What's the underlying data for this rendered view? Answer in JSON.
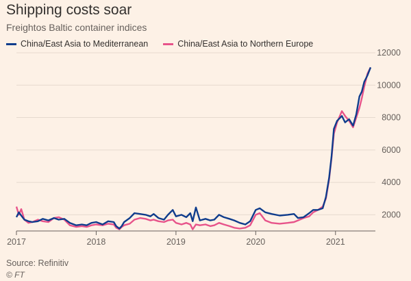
{
  "header": {
    "title": "Shipping costs soar",
    "subtitle": "Freightos Baltic container indices"
  },
  "legend": {
    "items": [
      {
        "label": "China/East Asia to Mediterranean",
        "color": "#0f3c8c"
      },
      {
        "label": "China/East Asia to Northern Europe",
        "color": "#e7538a"
      }
    ]
  },
  "footer": {
    "source": "Source: Refinitiv",
    "copyright": "© FT"
  },
  "chart_data": {
    "type": "line",
    "title": "Shipping costs soar",
    "subtitle": "Freightos Baltic container indices",
    "xlabel": "",
    "ylabel": "",
    "xlim": [
      2017.0,
      2021.5
    ],
    "ylim": [
      1000,
      12000
    ],
    "x_ticks": [
      2017,
      2018,
      2019,
      2020,
      2021
    ],
    "y_ticks": [
      2000,
      4000,
      6000,
      8000,
      10000,
      12000
    ],
    "y_tick_labels": [
      "2000",
      "4000",
      "6000",
      "8000",
      "10000",
      "12000"
    ],
    "y_axis_side": "right",
    "grid": "horizontal",
    "legend_position": "top-left",
    "series": [
      {
        "name": "China/East Asia to Mediterranean",
        "color": "#0f3c8c",
        "points": [
          [
            2017.0,
            1850
          ],
          [
            2017.03,
            2150
          ],
          [
            2017.06,
            1950
          ],
          [
            2017.1,
            1700
          ],
          [
            2017.15,
            1600
          ],
          [
            2017.2,
            1550
          ],
          [
            2017.27,
            1600
          ],
          [
            2017.33,
            1750
          ],
          [
            2017.4,
            1650
          ],
          [
            2017.47,
            1800
          ],
          [
            2017.53,
            1700
          ],
          [
            2017.6,
            1750
          ],
          [
            2017.67,
            1500
          ],
          [
            2017.75,
            1350
          ],
          [
            2017.82,
            1400
          ],
          [
            2017.88,
            1350
          ],
          [
            2017.94,
            1500
          ],
          [
            2018.0,
            1550
          ],
          [
            2018.08,
            1400
          ],
          [
            2018.15,
            1600
          ],
          [
            2018.22,
            1550
          ],
          [
            2018.25,
            1300
          ],
          [
            2018.29,
            1150
          ],
          [
            2018.32,
            1300
          ],
          [
            2018.35,
            1550
          ],
          [
            2018.42,
            1800
          ],
          [
            2018.48,
            2100
          ],
          [
            2018.55,
            2050
          ],
          [
            2018.62,
            2000
          ],
          [
            2018.68,
            1900
          ],
          [
            2018.72,
            2050
          ],
          [
            2018.78,
            1800
          ],
          [
            2018.85,
            1700
          ],
          [
            2018.9,
            2000
          ],
          [
            2018.96,
            2300
          ],
          [
            2019.0,
            1900
          ],
          [
            2019.07,
            2000
          ],
          [
            2019.13,
            1850
          ],
          [
            2019.18,
            2100
          ],
          [
            2019.21,
            1600
          ],
          [
            2019.25,
            2450
          ],
          [
            2019.3,
            1650
          ],
          [
            2019.37,
            1750
          ],
          [
            2019.43,
            1650
          ],
          [
            2019.48,
            1700
          ],
          [
            2019.54,
            2000
          ],
          [
            2019.6,
            1850
          ],
          [
            2019.67,
            1750
          ],
          [
            2019.73,
            1650
          ],
          [
            2019.8,
            1500
          ],
          [
            2019.87,
            1400
          ],
          [
            2019.93,
            1600
          ],
          [
            2020.0,
            2300
          ],
          [
            2020.05,
            2400
          ],
          [
            2020.12,
            2150
          ],
          [
            2020.2,
            2050
          ],
          [
            2020.3,
            1950
          ],
          [
            2020.4,
            2000
          ],
          [
            2020.48,
            2050
          ],
          [
            2020.53,
            1800
          ],
          [
            2020.6,
            1850
          ],
          [
            2020.67,
            2100
          ],
          [
            2020.72,
            2300
          ],
          [
            2020.78,
            2300
          ],
          [
            2020.84,
            2400
          ],
          [
            2020.88,
            3100
          ],
          [
            2020.92,
            4300
          ],
          [
            2020.95,
            5600
          ],
          [
            2020.98,
            7300
          ],
          [
            2021.02,
            7800
          ],
          [
            2021.08,
            8100
          ],
          [
            2021.12,
            7700
          ],
          [
            2021.17,
            7900
          ],
          [
            2021.22,
            7500
          ],
          [
            2021.26,
            8200
          ],
          [
            2021.3,
            9300
          ],
          [
            2021.33,
            9600
          ],
          [
            2021.36,
            10200
          ],
          [
            2021.4,
            10600
          ],
          [
            2021.44,
            11100
          ]
        ]
      },
      {
        "name": "China/East Asia to Northern Europe",
        "color": "#e7538a",
        "points": [
          [
            2017.0,
            2500
          ],
          [
            2017.03,
            2000
          ],
          [
            2017.06,
            2350
          ],
          [
            2017.1,
            1700
          ],
          [
            2017.15,
            1500
          ],
          [
            2017.2,
            1550
          ],
          [
            2017.27,
            1700
          ],
          [
            2017.33,
            1600
          ],
          [
            2017.4,
            1550
          ],
          [
            2017.47,
            1800
          ],
          [
            2017.53,
            1850
          ],
          [
            2017.6,
            1700
          ],
          [
            2017.67,
            1350
          ],
          [
            2017.75,
            1250
          ],
          [
            2017.82,
            1300
          ],
          [
            2017.88,
            1250
          ],
          [
            2017.94,
            1350
          ],
          [
            2018.0,
            1400
          ],
          [
            2018.08,
            1350
          ],
          [
            2018.15,
            1450
          ],
          [
            2018.22,
            1400
          ],
          [
            2018.25,
            1200
          ],
          [
            2018.29,
            1100
          ],
          [
            2018.32,
            1250
          ],
          [
            2018.35,
            1350
          ],
          [
            2018.42,
            1450
          ],
          [
            2018.48,
            1700
          ],
          [
            2018.55,
            1800
          ],
          [
            2018.62,
            1750
          ],
          [
            2018.68,
            1650
          ],
          [
            2018.72,
            1700
          ],
          [
            2018.78,
            1600
          ],
          [
            2018.85,
            1550
          ],
          [
            2018.9,
            1650
          ],
          [
            2018.96,
            1700
          ],
          [
            2019.0,
            1500
          ],
          [
            2019.07,
            1400
          ],
          [
            2019.13,
            1500
          ],
          [
            2019.18,
            1400
          ],
          [
            2019.21,
            1100
          ],
          [
            2019.25,
            1400
          ],
          [
            2019.3,
            1350
          ],
          [
            2019.37,
            1400
          ],
          [
            2019.43,
            1300
          ],
          [
            2019.48,
            1350
          ],
          [
            2019.54,
            1500
          ],
          [
            2019.6,
            1400
          ],
          [
            2019.67,
            1300
          ],
          [
            2019.73,
            1200
          ],
          [
            2019.8,
            1150
          ],
          [
            2019.87,
            1200
          ],
          [
            2019.93,
            1350
          ],
          [
            2020.0,
            2000
          ],
          [
            2020.05,
            2100
          ],
          [
            2020.12,
            1650
          ],
          [
            2020.2,
            1500
          ],
          [
            2020.3,
            1450
          ],
          [
            2020.4,
            1500
          ],
          [
            2020.48,
            1550
          ],
          [
            2020.53,
            1650
          ],
          [
            2020.6,
            1800
          ],
          [
            2020.67,
            1900
          ],
          [
            2020.72,
            2150
          ],
          [
            2020.78,
            2300
          ],
          [
            2020.84,
            2500
          ],
          [
            2020.88,
            3000
          ],
          [
            2020.92,
            4200
          ],
          [
            2020.95,
            5500
          ],
          [
            2020.98,
            7000
          ],
          [
            2021.02,
            7700
          ],
          [
            2021.08,
            8400
          ],
          [
            2021.12,
            8100
          ],
          [
            2021.17,
            7800
          ],
          [
            2021.22,
            7400
          ],
          [
            2021.26,
            8000
          ],
          [
            2021.3,
            8600
          ],
          [
            2021.33,
            9200
          ],
          [
            2021.36,
            9900
          ],
          [
            2021.4,
            10700
          ],
          [
            2021.44,
            11100
          ]
        ]
      }
    ]
  }
}
